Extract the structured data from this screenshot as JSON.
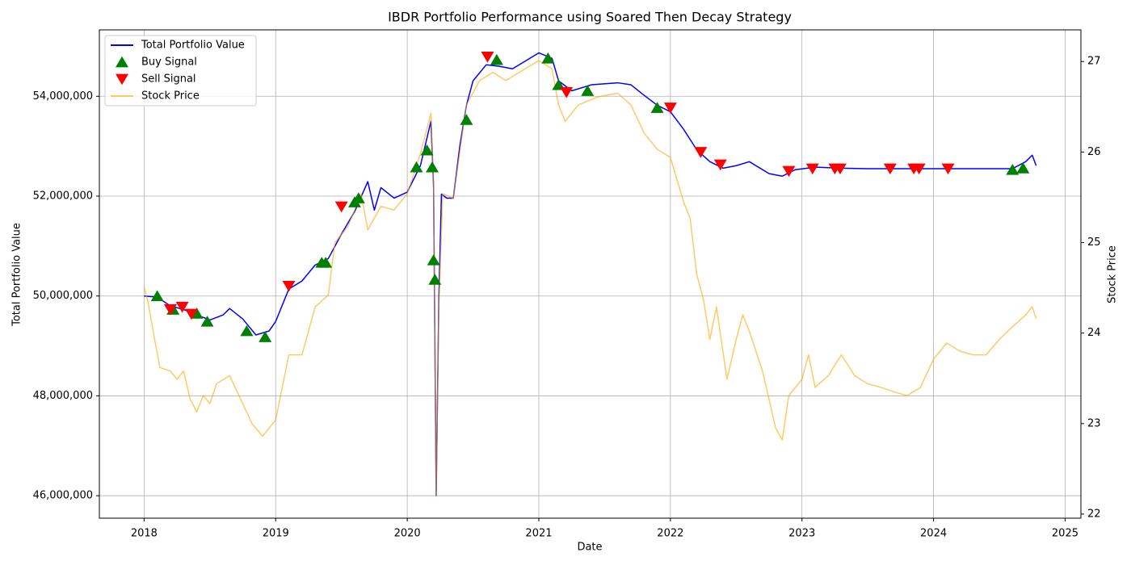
{
  "chart_data": {
    "type": "line",
    "title": "IBDR Portfolio Performance using Soared Then Decay Strategy",
    "x_label": "Date",
    "y_label": "Total Portfolio Value",
    "y2_label": "Stock Price",
    "xlim": [
      2017.66,
      2025.12
    ],
    "xticks": [
      2018,
      2019,
      2020,
      2021,
      2022,
      2023,
      2024,
      2025
    ],
    "ylim": [
      45550000,
      55330000
    ],
    "yticks": [
      {
        "value": 46000000,
        "label": "46,000,000"
      },
      {
        "value": 48000000,
        "label": "48,000,000"
      },
      {
        "value": 50000000,
        "label": "50,000,000"
      },
      {
        "value": 52000000,
        "label": "52,000,000"
      },
      {
        "value": 54000000,
        "label": "54,000,000"
      }
    ],
    "y2lim": [
      21.955,
      27.35
    ],
    "y2ticks": [
      22,
      23,
      24,
      25,
      26,
      27
    ],
    "grid": true,
    "legend": "upper left",
    "series": [
      {
        "name": "Total Portfolio Value",
        "type": "line",
        "color": "#0000ff",
        "axis": "y",
        "x": [
          2018.0,
          2018.1,
          2018.2,
          2018.3,
          2018.4,
          2018.5,
          2018.6,
          2018.65,
          2018.75,
          2018.85,
          2018.95,
          2019.0,
          2019.1,
          2019.2,
          2019.3,
          2019.4,
          2019.5,
          2019.6,
          2019.7,
          2019.75,
          2019.8,
          2019.9,
          2020.0,
          2020.1,
          2020.18,
          2020.2,
          2020.22,
          2020.24,
          2020.26,
          2020.3,
          2020.35,
          2020.4,
          2020.45,
          2020.5,
          2020.6,
          2020.7,
          2020.8,
          2020.9,
          2021.0,
          2021.1,
          2021.15,
          2021.25,
          2021.4,
          2021.6,
          2021.7,
          2021.8,
          2021.9,
          2022.0,
          2022.1,
          2022.2,
          2022.3,
          2022.4,
          2022.5,
          2022.6,
          2022.75,
          2022.85,
          2022.95,
          2023.1,
          2023.3,
          2023.5,
          2024.6,
          2024.7,
          2024.75,
          2024.78
        ],
        "values": [
          50000000,
          49980000,
          49800000,
          49730000,
          49620000,
          49520000,
          49620000,
          49750000,
          49540000,
          49220000,
          49300000,
          49490000,
          50140000,
          50300000,
          50620000,
          50750000,
          51240000,
          51690000,
          52290000,
          51720000,
          52170000,
          51960000,
          52080000,
          52610000,
          53500000,
          52200000,
          46000000,
          49940000,
          52040000,
          51960000,
          51960000,
          53010000,
          53820000,
          54310000,
          54630000,
          54600000,
          54550000,
          54710000,
          54870000,
          54760000,
          54310000,
          54110000,
          54230000,
          54270000,
          54230000,
          54020000,
          53820000,
          53690000,
          53340000,
          52930000,
          52690000,
          52560000,
          52610000,
          52690000,
          52450000,
          52400000,
          52530000,
          52580000,
          52560000,
          52550000,
          52550000,
          52690000,
          52820000,
          52610000
        ]
      },
      {
        "name": "Buy Signal",
        "type": "scatter",
        "marker": "triangle-up",
        "color": "#008000",
        "axis": "y",
        "x": [
          2018.1,
          2018.22,
          2018.4,
          2018.48,
          2018.78,
          2018.92,
          2019.35,
          2019.38,
          2019.6,
          2019.63,
          2020.07,
          2020.15,
          2020.19,
          2020.2,
          2020.21,
          2020.45,
          2020.68,
          2021.07,
          2021.15,
          2021.37,
          2021.9,
          2024.6,
          2024.68
        ],
        "values": [
          50000000,
          49730000,
          49650000,
          49490000,
          49300000,
          49180000,
          50670000,
          50670000,
          51880000,
          51960000,
          52580000,
          52920000,
          52580000,
          50720000,
          50330000,
          53530000,
          54730000,
          54760000,
          54230000,
          54110000,
          53770000,
          52530000,
          52560000
        ]
      },
      {
        "name": "Sell Signal",
        "type": "scatter",
        "marker": "triangle-down",
        "color": "#ff0000",
        "axis": "y",
        "x": [
          2018.2,
          2018.29,
          2018.36,
          2019.1,
          2019.5,
          2020.61,
          2021.21,
          2022.0,
          2022.23,
          2022.38,
          2022.9,
          2023.08,
          2023.25,
          2023.29,
          2023.67,
          2023.85,
          2023.89,
          2024.11
        ],
        "values": [
          49730000,
          49780000,
          49640000,
          50200000,
          51790000,
          54790000,
          54080000,
          53770000,
          52880000,
          52630000,
          52500000,
          52550000,
          52550000,
          52550000,
          52550000,
          52550000,
          52550000,
          52550000
        ]
      },
      {
        "name": "Stock Price",
        "type": "line",
        "color": "#ffa500",
        "opacity": 0.6,
        "axis": "y2",
        "x": [
          2018.0,
          2018.03,
          2018.08,
          2018.12,
          2018.2,
          2018.25,
          2018.3,
          2018.35,
          2018.4,
          2018.45,
          2018.5,
          2018.55,
          2018.65,
          2018.75,
          2018.82,
          2018.9,
          2019.0,
          2019.1,
          2019.2,
          2019.3,
          2019.4,
          2019.45,
          2019.55,
          2019.65,
          2019.7,
          2019.8,
          2019.9,
          2020.0,
          2020.1,
          2020.18,
          2020.2,
          2020.22,
          2020.24,
          2020.27,
          2020.35,
          2020.45,
          2020.55,
          2020.65,
          2020.75,
          2020.85,
          2021.0,
          2021.1,
          2021.15,
          2021.2,
          2021.3,
          2021.45,
          2021.6,
          2021.7,
          2021.8,
          2021.9,
          2022.0,
          2022.1,
          2022.15,
          2022.2,
          2022.25,
          2022.3,
          2022.35,
          2022.43,
          2022.5,
          2022.55,
          2022.6,
          2022.7,
          2022.8,
          2022.85,
          2022.9,
          2023.0,
          2023.05,
          2023.1,
          2023.2,
          2023.3,
          2023.4,
          2023.5,
          2023.6,
          2023.7,
          2023.8,
          2023.9,
          2024.0,
          2024.1,
          2024.2,
          2024.3,
          2024.4,
          2024.5,
          2024.6,
          2024.7,
          2024.75,
          2024.78
        ],
        "values": [
          24.51,
          24.34,
          23.93,
          23.62,
          23.58,
          23.49,
          23.58,
          23.27,
          23.13,
          23.31,
          23.22,
          23.44,
          23.53,
          23.22,
          23.0,
          22.86,
          23.04,
          23.76,
          23.76,
          24.29,
          24.42,
          25.0,
          25.18,
          25.54,
          25.14,
          25.4,
          25.36,
          25.54,
          25.98,
          26.43,
          25.63,
          22.2,
          24.29,
          25.54,
          25.49,
          26.52,
          26.79,
          26.88,
          26.79,
          26.88,
          27.01,
          26.92,
          26.52,
          26.34,
          26.52,
          26.61,
          26.65,
          26.52,
          26.21,
          26.03,
          25.94,
          25.45,
          25.27,
          24.65,
          24.38,
          23.93,
          24.29,
          23.49,
          23.93,
          24.2,
          24.02,
          23.58,
          22.95,
          22.82,
          23.31,
          23.49,
          23.76,
          23.4,
          23.53,
          23.76,
          23.53,
          23.44,
          23.4,
          23.35,
          23.31,
          23.4,
          23.71,
          23.89,
          23.8,
          23.76,
          23.76,
          23.93,
          24.07,
          24.2,
          24.29,
          24.16
        ]
      }
    ]
  }
}
